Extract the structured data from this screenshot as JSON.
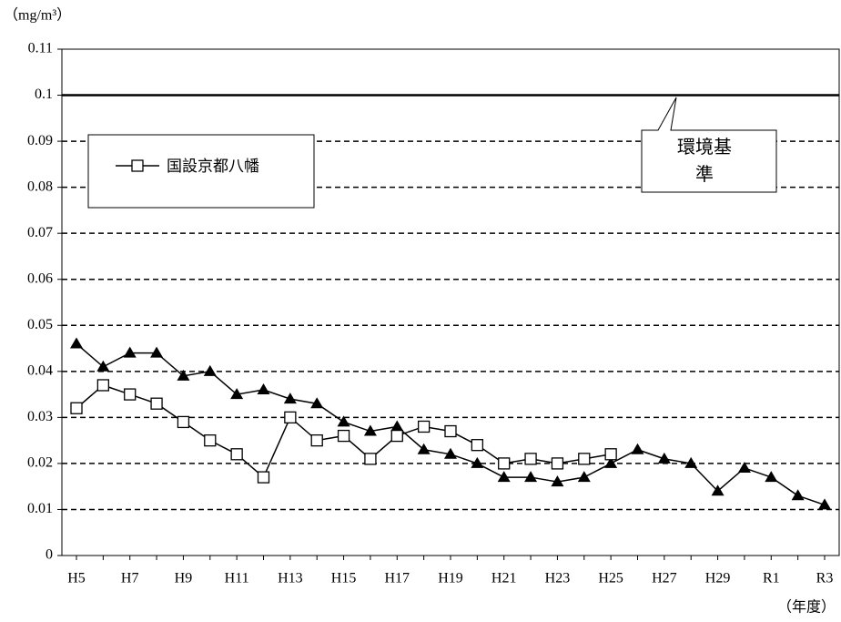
{
  "chart_data": {
    "type": "line",
    "y_label": "（mg/m³）",
    "x_label": "（年度）",
    "categories": [
      "H5",
      null,
      "H7",
      null,
      "H9",
      null,
      "H11",
      null,
      "H13",
      null,
      "H15",
      null,
      "H17",
      null,
      "H19",
      null,
      "H21",
      null,
      "H23",
      null,
      "H25",
      null,
      "H27",
      null,
      "H29",
      null,
      "R1",
      null,
      "R3"
    ],
    "series": [
      {
        "color": "#000000",
        "marker": "triangle",
        "values": [
          0.046,
          0.041,
          0.044,
          0.044,
          0.039,
          0.04,
          0.035,
          0.036,
          0.034,
          0.033,
          0.029,
          0.027,
          0.028,
          0.023,
          0.022,
          0.02,
          0.017,
          0.017,
          0.016,
          0.017,
          0.02,
          0.023,
          0.021,
          0.02,
          0.014,
          0.019,
          0.017,
          0.013,
          0.011
        ]
      },
      {
        "name": "国設京都八幡",
        "color": "#000000",
        "marker": "square",
        "values": [
          0.032,
          0.037,
          0.035,
          0.033,
          0.029,
          0.025,
          0.022,
          0.017,
          0.03,
          0.025,
          0.026,
          0.021,
          0.026,
          0.028,
          0.027,
          0.024,
          0.02,
          0.021,
          0.02,
          0.021,
          0.022,
          null,
          null,
          null,
          null,
          null,
          null,
          null,
          null
        ]
      }
    ],
    "ylim": [
      0,
      0.11
    ],
    "yticks": [
      0,
      0.01,
      0.02,
      0.03,
      0.04,
      0.05,
      0.06,
      0.07,
      0.08,
      0.09,
      0.1,
      0.11
    ],
    "grid": true,
    "annotations": [
      {
        "text": "環境基準",
        "y": 0.1
      }
    ]
  }
}
